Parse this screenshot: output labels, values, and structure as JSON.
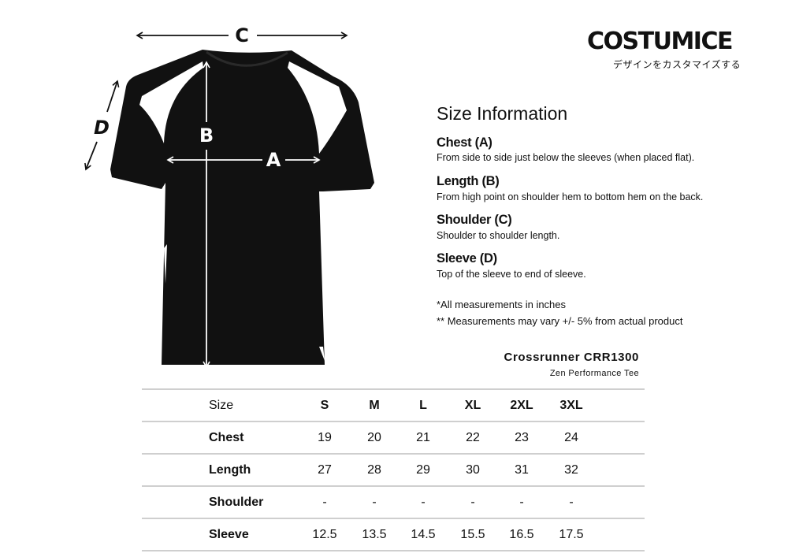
{
  "brand": {
    "name": "COSTUMICE",
    "tagline": "デザインをカスタマイズする"
  },
  "diagram": {
    "labels": {
      "a": "A",
      "b": "B",
      "c": "C",
      "d": "D"
    },
    "shirt_color": "#111111",
    "insert_color": "#ffffff"
  },
  "info": {
    "title": "Size Information",
    "items": [
      {
        "heading": "Chest (A)",
        "description": "From side to side just below the sleeves (when placed flat)."
      },
      {
        "heading": "Length (B)",
        "description": "From high point on shoulder hem to bottom hem on the back."
      },
      {
        "heading": "Shoulder (C)",
        "description": "Shoulder to shoulder length."
      },
      {
        "heading": "Sleeve (D)",
        "description": "Top of the sleeve to end of sleeve."
      }
    ],
    "notes": [
      "*All measurements in inches",
      "** Measurements may vary +/- 5% from actual product"
    ]
  },
  "product": {
    "name": "Crossrunner CRR1300",
    "subtitle": "Zen Performance Tee"
  },
  "table": {
    "header": {
      "label": "Size",
      "sizes": [
        "S",
        "M",
        "L",
        "XL",
        "2XL",
        "3XL"
      ]
    },
    "rows": [
      {
        "label": "Chest",
        "values": [
          "19",
          "20",
          "21",
          "22",
          "23",
          "24"
        ]
      },
      {
        "label": "Length",
        "values": [
          "27",
          "28",
          "29",
          "30",
          "31",
          "32"
        ]
      },
      {
        "label": "Shoulder",
        "values": [
          "-",
          "-",
          "-",
          "-",
          "-",
          "-"
        ]
      },
      {
        "label": "Sleeve",
        "values": [
          "12.5",
          "13.5",
          "14.5",
          "15.5",
          "16.5",
          "17.5"
        ]
      }
    ]
  }
}
